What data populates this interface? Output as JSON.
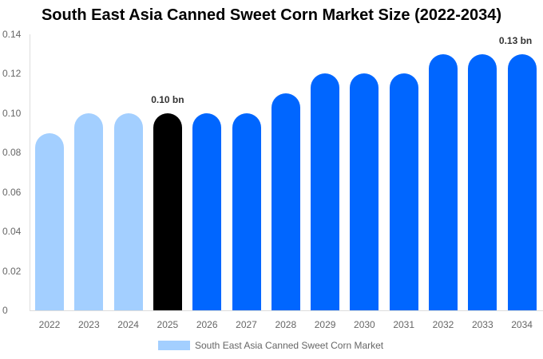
{
  "chart_data": {
    "type": "bar",
    "title": "South East Asia Canned Sweet Corn Market Size (2022-2034)",
    "xlabel": "",
    "ylabel": "",
    "ylim": [
      0,
      0.14
    ],
    "yticks": [
      "0",
      "0.02",
      "0.04",
      "0.06",
      "0.08",
      "0.10",
      "0.12",
      "0.14"
    ],
    "categories": [
      "2022",
      "2023",
      "2024",
      "2025",
      "2026",
      "2027",
      "2028",
      "2029",
      "2030",
      "2031",
      "2032",
      "2033",
      "2034"
    ],
    "series": [
      {
        "name": "South East Asia Canned Sweet Corn Market",
        "values": [
          0.09,
          0.1,
          0.1,
          0.1,
          0.1,
          0.1,
          0.11,
          0.12,
          0.12,
          0.12,
          0.13,
          0.13,
          0.13
        ]
      }
    ],
    "bar_colors": [
      "#a3cfff",
      "#a3cfff",
      "#a3cfff",
      "#000000",
      "#0066ff",
      "#0066ff",
      "#0066ff",
      "#0066ff",
      "#0066ff",
      "#0066ff",
      "#0066ff",
      "#0066ff",
      "#0066ff"
    ],
    "annotations": [
      {
        "category": "2025",
        "text": "0.10 bn"
      },
      {
        "category": "2034",
        "text": "0.13 bn"
      }
    ],
    "legend": {
      "position": "bottom",
      "label": "South East Asia Canned Sweet Corn Market",
      "color": "#a3cfff"
    },
    "grid": false
  }
}
